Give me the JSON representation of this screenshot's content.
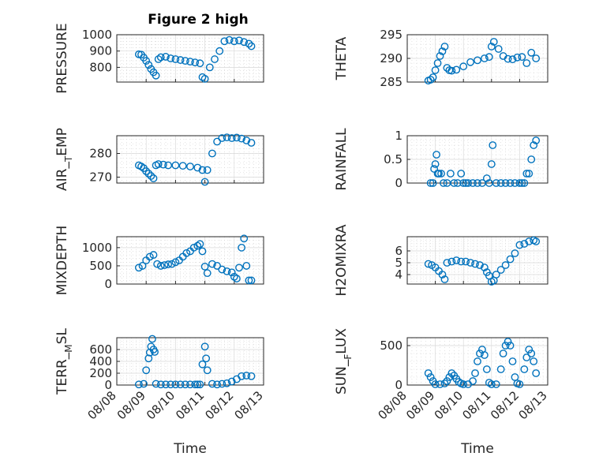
{
  "figure": {
    "title": "Figure 2 high",
    "marker_color": "#0072BD",
    "background": "#ffffff"
  },
  "chart_data": [
    {
      "type": "scatter",
      "ylabel": "PRESSURE",
      "xlabel": "",
      "ylim": [
        710,
        1000
      ],
      "yticks": [
        800,
        900,
        1000
      ],
      "show_xticks": false,
      "x": [
        "08/08 18:00",
        "08/08 20:00",
        "08/08 22:00",
        "08/09 00:00",
        "08/09 02:00",
        "08/09 04:00",
        "08/09 06:00",
        "08/09 08:00",
        "08/09 10:00",
        "08/09 12:00",
        "08/09 16:00",
        "08/09 20:00",
        "08/10 00:00",
        "08/10 04:00",
        "08/10 08:00",
        "08/10 12:00",
        "08/10 16:00",
        "08/10 20:00",
        "08/10 22:00",
        "08/11 00:00",
        "08/11 04:00",
        "08/11 08:00",
        "08/11 12:00",
        "08/11 16:00",
        "08/11 20:00",
        "08/12 00:00",
        "08/12 04:00",
        "08/12 08:00",
        "08/12 12:00",
        "08/12 14:00"
      ],
      "y": [
        880,
        878,
        860,
        840,
        815,
        790,
        770,
        750,
        850,
        862,
        865,
        855,
        850,
        845,
        840,
        835,
        830,
        825,
        740,
        730,
        800,
        850,
        900,
        960,
        968,
        960,
        965,
        955,
        945,
        930
      ]
    },
    {
      "type": "scatter",
      "ylabel": "THETA",
      "xlabel": "",
      "ylim": [
        285,
        295
      ],
      "yticks": [
        285,
        290,
        295
      ],
      "show_xticks": false,
      "x": [
        "08/08 18:00",
        "08/08 20:00",
        "08/08 22:00",
        "08/09 00:00",
        "08/09 02:00",
        "08/09 04:00",
        "08/09 06:00",
        "08/09 08:00",
        "08/09 10:00",
        "08/09 12:00",
        "08/09 14:00",
        "08/09 18:00",
        "08/10 00:00",
        "08/10 06:00",
        "08/10 12:00",
        "08/10 18:00",
        "08/10 22:00",
        "08/11 00:00",
        "08/11 02:00",
        "08/11 06:00",
        "08/11 10:00",
        "08/11 14:00",
        "08/11 18:00",
        "08/11 22:00",
        "08/12 02:00",
        "08/12 06:00",
        "08/12 10:00",
        "08/12 14:00"
      ],
      "y": [
        285.3,
        285.5,
        286,
        287.5,
        289,
        290.5,
        291.5,
        292.5,
        288,
        287.5,
        287.4,
        287.6,
        288.3,
        289.2,
        289.6,
        290,
        290.3,
        292.5,
        293.5,
        292,
        290.5,
        289.9,
        289.8,
        290.2,
        290.3,
        289,
        291.2,
        290
      ]
    },
    {
      "type": "scatter",
      "ylabel": "AIR_TEMP",
      "xlabel": "",
      "ylim": [
        267.5,
        287.5
      ],
      "yticks": [
        270,
        280
      ],
      "show_xticks": false,
      "x": [
        "08/08 18:00",
        "08/08 20:00",
        "08/08 22:00",
        "08/09 00:00",
        "08/09 02:00",
        "08/09 04:00",
        "08/09 06:00",
        "08/09 08:00",
        "08/09 10:00",
        "08/09 14:00",
        "08/09 18:00",
        "08/10 00:00",
        "08/10 06:00",
        "08/10 12:00",
        "08/10 18:00",
        "08/10 22:00",
        "08/11 00:00",
        "08/11 02:00",
        "08/11 06:00",
        "08/11 10:00",
        "08/11 14:00",
        "08/11 18:00",
        "08/11 22:00",
        "08/12 02:00",
        "08/12 06:00",
        "08/12 10:00",
        "08/12 14:00"
      ],
      "y": [
        275,
        274.5,
        273.8,
        272.5,
        271.5,
        270.5,
        269.5,
        275,
        275.5,
        275.3,
        275,
        275,
        274.8,
        274.5,
        274,
        273,
        268,
        273,
        280,
        285,
        286.5,
        286.8,
        286.5,
        286.7,
        286.3,
        285.5,
        284.5
      ]
    },
    {
      "type": "scatter",
      "ylabel": "RAINFALL",
      "xlabel": "",
      "ylim": [
        0,
        1
      ],
      "yticks": [
        0,
        0.5,
        1
      ],
      "show_xticks": false,
      "x": [
        "08/08 20:00",
        "08/08 22:00",
        "08/08 23:00",
        "08/09 00:00",
        "08/09 01:00",
        "08/09 02:00",
        "08/09 03:00",
        "08/09 05:00",
        "08/09 07:00",
        "08/09 10:00",
        "08/09 13:00",
        "08/09 16:00",
        "08/09 19:00",
        "08/09 22:00",
        "08/10 00:00",
        "08/10 02:00",
        "08/10 04:00",
        "08/10 08:00",
        "08/10 12:00",
        "08/10 16:00",
        "08/10 20:00",
        "08/10 22:00",
        "08/11 00:00",
        "08/11 01:00",
        "08/11 04:00",
        "08/11 08:00",
        "08/11 12:00",
        "08/11 16:00",
        "08/11 20:00",
        "08/12 00:00",
        "08/12 02:00",
        "08/12 04:00",
        "08/12 06:00",
        "08/12 08:00",
        "08/12 10:00",
        "08/12 12:00",
        "08/12 14:00"
      ],
      "y": [
        0,
        0,
        0.3,
        0.4,
        0.6,
        0.2,
        0.2,
        0.2,
        0,
        0,
        0.2,
        0,
        0,
        0.2,
        0,
        0,
        0,
        0,
        0,
        0,
        0.1,
        0,
        0.4,
        0.8,
        0,
        0,
        0,
        0,
        0,
        0,
        0,
        0,
        0.2,
        0.2,
        0.5,
        0.8,
        0.9
      ]
    },
    {
      "type": "scatter",
      "ylabel": "MIXDEPTH",
      "xlabel": "",
      "ylim": [
        0,
        1300
      ],
      "yticks": [
        0,
        500,
        1000
      ],
      "show_xticks": false,
      "x": [
        "08/08 18:00",
        "08/08 21:00",
        "08/09 00:00",
        "08/09 03:00",
        "08/09 06:00",
        "08/09 09:00",
        "08/09 12:00",
        "08/09 15:00",
        "08/09 18:00",
        "08/09 21:00",
        "08/10 00:00",
        "08/10 03:00",
        "08/10 06:00",
        "08/10 09:00",
        "08/10 12:00",
        "08/10 15:00",
        "08/10 18:00",
        "08/10 20:00",
        "08/10 22:00",
        "08/11 00:00",
        "08/11 02:00",
        "08/11 06:00",
        "08/11 10:00",
        "08/11 14:00",
        "08/11 18:00",
        "08/11 22:00",
        "08/12 00:00",
        "08/12 02:00",
        "08/12 04:00",
        "08/12 06:00",
        "08/12 08:00",
        "08/12 10:00",
        "08/12 12:00",
        "08/12 14:00"
      ],
      "y": [
        450,
        500,
        650,
        750,
        800,
        550,
        500,
        520,
        540,
        550,
        600,
        650,
        750,
        850,
        900,
        1000,
        1050,
        1100,
        900,
        480,
        300,
        550,
        500,
        400,
        350,
        320,
        200,
        150,
        450,
        1000,
        1250,
        500,
        100,
        100
      ]
    },
    {
      "type": "scatter",
      "ylabel": "H2OMIXRA",
      "xlabel": "",
      "ylim": [
        3.2,
        7.2
      ],
      "yticks": [
        4,
        5,
        6
      ],
      "show_xticks": false,
      "x": [
        "08/08 18:00",
        "08/08 21:00",
        "08/09 00:00",
        "08/09 03:00",
        "08/09 06:00",
        "08/09 08:00",
        "08/09 10:00",
        "08/09 14:00",
        "08/09 18:00",
        "08/09 22:00",
        "08/10 02:00",
        "08/10 06:00",
        "08/10 10:00",
        "08/10 14:00",
        "08/10 18:00",
        "08/10 20:00",
        "08/10 22:00",
        "08/11 00:00",
        "08/11 02:00",
        "08/11 04:00",
        "08/11 08:00",
        "08/11 12:00",
        "08/11 16:00",
        "08/11 20:00",
        "08/12 00:00",
        "08/12 04:00",
        "08/12 08:00",
        "08/12 12:00",
        "08/12 14:00"
      ],
      "y": [
        4.9,
        4.8,
        4.6,
        4.3,
        4,
        3.6,
        5,
        5.1,
        5.2,
        5.1,
        5.1,
        5,
        4.9,
        4.8,
        4.6,
        4.2,
        3.9,
        3.4,
        3.5,
        4,
        4.4,
        4.8,
        5.3,
        5.8,
        6.5,
        6.6,
        6.8,
        6.9,
        6.8
      ]
    },
    {
      "type": "scatter",
      "ylabel": "TERR_MSL",
      "xlabel": "Time",
      "ylim": [
        0,
        800
      ],
      "yticks": [
        0,
        200,
        400,
        600
      ],
      "show_xticks": true,
      "xticks": [
        "08/08",
        "08/09",
        "08/10",
        "08/11",
        "08/12",
        "08/13"
      ],
      "x": [
        "08/08 18:00",
        "08/08 22:00",
        "08/09 00:00",
        "08/09 02:00",
        "08/09 03:00",
        "08/09 04:00",
        "08/09 05:00",
        "08/09 06:00",
        "08/09 07:00",
        "08/09 08:00",
        "08/09 12:00",
        "08/09 16:00",
        "08/09 20:00",
        "08/10 00:00",
        "08/10 04:00",
        "08/10 08:00",
        "08/10 12:00",
        "08/10 16:00",
        "08/10 18:00",
        "08/10 20:00",
        "08/10 22:00",
        "08/11 00:00",
        "08/11 01:00",
        "08/11 02:00",
        "08/11 06:00",
        "08/11 10:00",
        "08/11 14:00",
        "08/11 18:00",
        "08/11 22:00",
        "08/12 02:00",
        "08/12 06:00",
        "08/12 10:00",
        "08/12 14:00"
      ],
      "y": [
        10,
        20,
        250,
        450,
        550,
        650,
        780,
        600,
        560,
        20,
        10,
        10,
        10,
        10,
        10,
        10,
        10,
        10,
        10,
        10,
        350,
        650,
        450,
        250,
        20,
        10,
        20,
        30,
        60,
        100,
        150,
        160,
        150
      ]
    },
    {
      "type": "scatter",
      "ylabel": "SUN_FLUX",
      "xlabel": "Time",
      "ylim": [
        0,
        600
      ],
      "yticks": [
        0,
        500
      ],
      "show_xticks": true,
      "xticks": [
        "08/08",
        "08/09",
        "08/10",
        "08/11",
        "08/12",
        "08/13"
      ],
      "x": [
        "08/08 18:00",
        "08/08 20:00",
        "08/08 22:00",
        "08/09 00:00",
        "08/09 04:00",
        "08/09 08:00",
        "08/09 10:00",
        "08/09 12:00",
        "08/09 14:00",
        "08/09 16:00",
        "08/09 18:00",
        "08/09 20:00",
        "08/09 22:00",
        "08/10 00:00",
        "08/10 04:00",
        "08/10 08:00",
        "08/10 10:00",
        "08/10 12:00",
        "08/10 14:00",
        "08/10 16:00",
        "08/10 18:00",
        "08/10 20:00",
        "08/10 22:00",
        "08/11 00:00",
        "08/11 04:00",
        "08/11 08:00",
        "08/11 10:00",
        "08/11 12:00",
        "08/11 14:00",
        "08/11 16:00",
        "08/11 18:00",
        "08/11 20:00",
        "08/11 22:00",
        "08/12 00:00",
        "08/12 04:00",
        "08/12 06:00",
        "08/12 08:00",
        "08/12 10:00",
        "08/12 12:00",
        "08/12 14:00"
      ],
      "y": [
        150,
        100,
        50,
        10,
        10,
        20,
        50,
        100,
        150,
        120,
        80,
        40,
        20,
        10,
        10,
        50,
        150,
        300,
        400,
        450,
        380,
        200,
        30,
        10,
        10,
        200,
        400,
        500,
        550,
        500,
        300,
        100,
        20,
        10,
        200,
        350,
        450,
        400,
        300,
        150
      ]
    }
  ]
}
